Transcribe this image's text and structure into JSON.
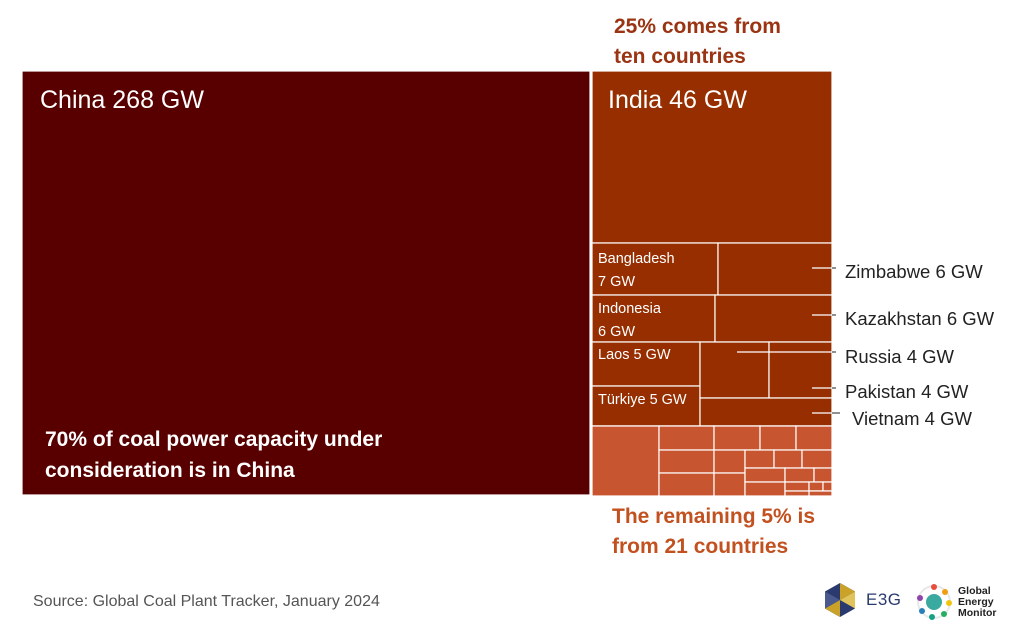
{
  "chart_data": {
    "type": "treemap",
    "unit": "GW",
    "annotations": {
      "top": [
        "25% comes from",
        "ten countries"
      ],
      "bottom": [
        "The remaining 5% is",
        "from 21 countries"
      ],
      "china": [
        "70% of coal power capacity under",
        "consideration is in China"
      ]
    },
    "groups": [
      {
        "name": "China",
        "share": "70%",
        "items": [
          {
            "country": "China",
            "value": 268,
            "label": "China 268 GW"
          }
        ]
      },
      {
        "name": "ten countries",
        "share": "25%",
        "items": [
          {
            "country": "India",
            "value": 46,
            "label": "India 46 GW"
          },
          {
            "country": "Bangladesh",
            "value": 7,
            "label": "Bangladesh 7 GW"
          },
          {
            "country": "Zimbabwe",
            "value": 6,
            "label": "Zimbabwe 6 GW"
          },
          {
            "country": "Indonesia",
            "value": 6,
            "label": "Indonesia 6 GW"
          },
          {
            "country": "Kazakhstan",
            "value": 6,
            "label": "Kazakhstan 6 GW"
          },
          {
            "country": "Laos",
            "value": 5,
            "label": "Laos 5 GW"
          },
          {
            "country": "Türkiye",
            "value": 5,
            "label": "Türkiye 5 GW"
          },
          {
            "country": "Russia",
            "value": 4,
            "label": "Russia 4 GW"
          },
          {
            "country": "Pakistan",
            "value": 4,
            "label": "Pakistan 4 GW"
          },
          {
            "country": "Vietnam",
            "value": 4,
            "label": "Vietnam 4 GW"
          }
        ]
      },
      {
        "name": "21 countries",
        "share": "5%",
        "count": 21
      }
    ]
  },
  "colors": {
    "china": "#580000",
    "ten_countries": "#962e00",
    "remaining": "#c75530",
    "top_annotation": "#9a3412",
    "bottom_annotation": "#c2511f"
  },
  "source": "Source: Global Coal Plant Tracker, January 2024",
  "logos": {
    "e3g": "E3G",
    "gem": [
      "Global",
      "Energy",
      "Monitor"
    ]
  }
}
